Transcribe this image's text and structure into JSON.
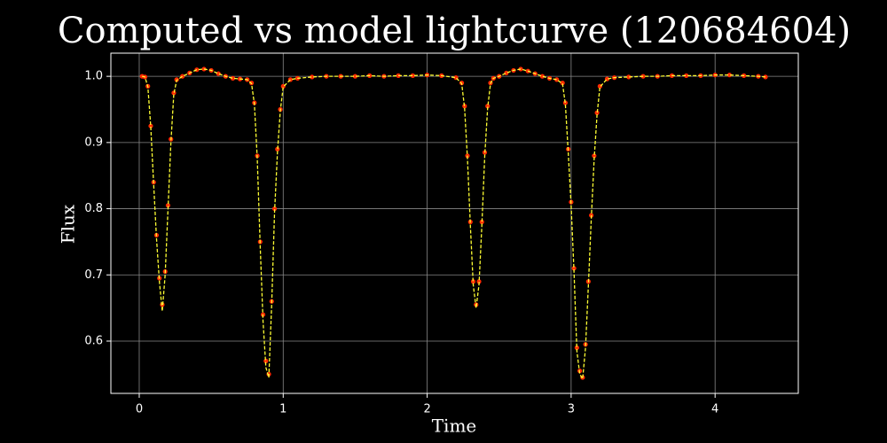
{
  "chart_data": {
    "type": "scatter",
    "title": "Computed vs model lightcurve (120684604)",
    "x_label": "Time",
    "y_label": "Flux",
    "grid": true,
    "xlim": [
      -0.197,
      4.578
    ],
    "ylim": [
      0.521,
      1.035
    ],
    "xticks": [
      0,
      1,
      2,
      3,
      4
    ],
    "yticks": [
      0.6,
      0.7,
      0.8,
      0.9,
      {
        "value": 1,
        "label": "1.0"
      }
    ],
    "x": [
      0.02,
      0.04,
      0.06,
      0.08,
      0.1,
      0.12,
      0.14,
      0.16,
      0.18,
      0.2,
      0.22,
      0.24,
      0.26,
      0.3,
      0.35,
      0.4,
      0.45,
      0.5,
      0.55,
      0.6,
      0.65,
      0.7,
      0.75,
      0.78,
      0.8,
      0.82,
      0.84,
      0.86,
      0.88,
      0.9,
      0.92,
      0.94,
      0.96,
      0.98,
      1.0,
      1.05,
      1.1,
      1.2,
      1.3,
      1.4,
      1.5,
      1.6,
      1.7,
      1.8,
      1.9,
      2.0,
      2.1,
      2.2,
      2.24,
      2.26,
      2.28,
      2.3,
      2.32,
      2.34,
      2.36,
      2.38,
      2.4,
      2.42,
      2.44,
      2.46,
      2.5,
      2.55,
      2.6,
      2.65,
      2.7,
      2.75,
      2.8,
      2.85,
      2.9,
      2.94,
      2.96,
      2.98,
      3.0,
      3.02,
      3.04,
      3.06,
      3.08,
      3.1,
      3.12,
      3.14,
      3.16,
      3.18,
      3.2,
      3.25,
      3.3,
      3.4,
      3.5,
      3.6,
      3.7,
      3.8,
      3.9,
      4.0,
      4.1,
      4.2,
      4.3,
      4.35
    ],
    "series": [
      {
        "mode": "markers",
        "color": "#ff2a00",
        "values": [
          1.0,
          0.999,
          0.985,
          0.925,
          0.84,
          0.76,
          0.695,
          0.655,
          0.705,
          0.805,
          0.905,
          0.975,
          0.995,
          1.0,
          1.005,
          1.01,
          1.011,
          1.009,
          1.004,
          1.0,
          0.997,
          0.996,
          0.995,
          0.99,
          0.96,
          0.88,
          0.75,
          0.64,
          0.57,
          0.55,
          0.66,
          0.8,
          0.89,
          0.95,
          0.985,
          0.995,
          0.997,
          0.999,
          1.0,
          1.0,
          1.0,
          1.001,
          1.0,
          1.001,
          1.001,
          1.002,
          1.001,
          0.998,
          0.99,
          0.955,
          0.88,
          0.78,
          0.69,
          0.655,
          0.69,
          0.78,
          0.885,
          0.955,
          0.99,
          0.997,
          1.0,
          1.005,
          1.009,
          1.011,
          1.008,
          1.004,
          1.0,
          0.997,
          0.995,
          0.99,
          0.96,
          0.89,
          0.81,
          0.71,
          0.59,
          0.555,
          0.545,
          0.595,
          0.69,
          0.79,
          0.88,
          0.945,
          0.985,
          0.996,
          0.998,
          0.999,
          1.0,
          1.0,
          1.001,
          1.001,
          1.001,
          1.002,
          1.002,
          1.001,
          1.0,
          0.999
        ]
      },
      {
        "mode": "dashed-line",
        "color": "#ffff33",
        "values": [
          1.0,
          0.999,
          0.984,
          0.924,
          0.838,
          0.755,
          0.69,
          0.645,
          0.7,
          0.8,
          0.9,
          0.973,
          0.994,
          1.0,
          1.005,
          1.01,
          1.011,
          1.009,
          1.004,
          1.0,
          0.997,
          0.996,
          0.995,
          0.989,
          0.958,
          0.875,
          0.745,
          0.63,
          0.56,
          0.545,
          0.655,
          0.795,
          0.885,
          0.948,
          0.984,
          0.995,
          0.997,
          0.999,
          1.0,
          1.0,
          1.0,
          1.001,
          1.0,
          1.001,
          1.001,
          1.002,
          1.001,
          0.998,
          0.989,
          0.952,
          0.875,
          0.775,
          0.685,
          0.65,
          0.685,
          0.775,
          0.88,
          0.952,
          0.989,
          0.997,
          1.0,
          1.005,
          1.009,
          1.011,
          1.008,
          1.004,
          1.0,
          0.997,
          0.995,
          0.989,
          0.958,
          0.885,
          0.805,
          0.705,
          0.585,
          0.55,
          0.543,
          0.59,
          0.685,
          0.785,
          0.875,
          0.942,
          0.984,
          0.996,
          0.998,
          0.999,
          1.0,
          1.0,
          1.001,
          1.001,
          1.001,
          1.002,
          1.002,
          1.001,
          1.0,
          0.999
        ]
      }
    ]
  }
}
